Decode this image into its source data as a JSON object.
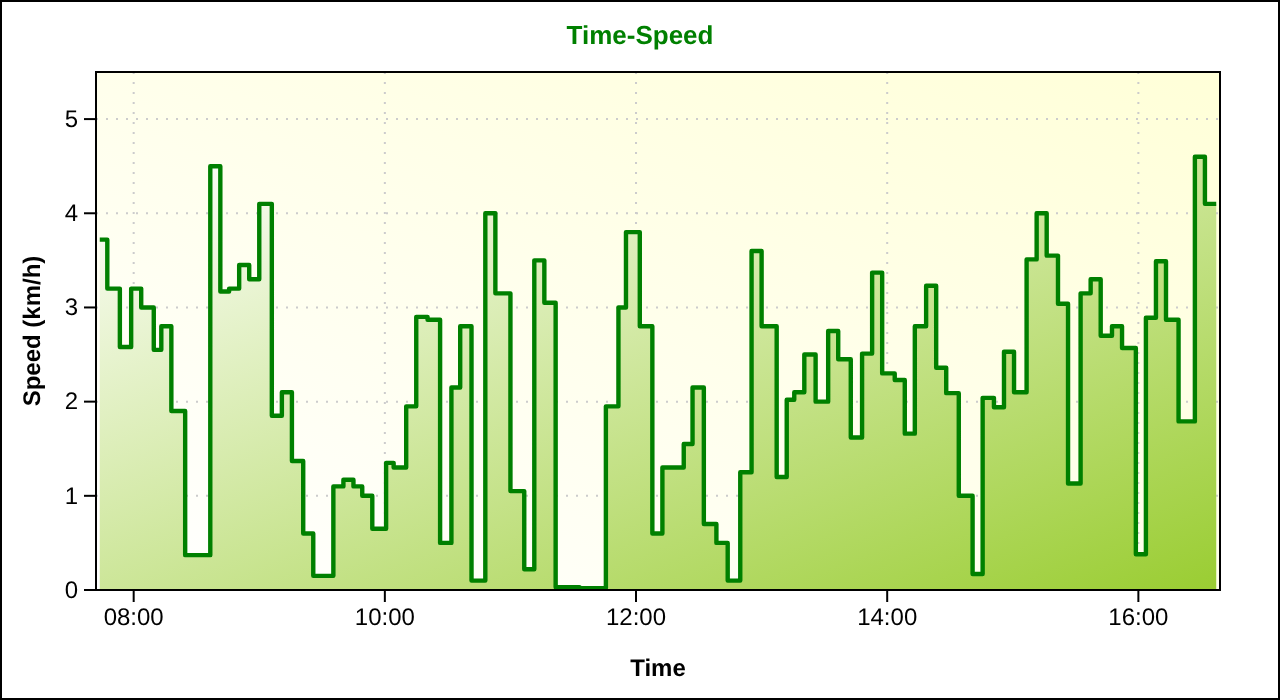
{
  "chart_data": {
    "type": "step",
    "title": "Time-Speed",
    "xlabel": "Time",
    "ylabel": "Speed (km/h)",
    "xlim": [
      7.7,
      16.65
    ],
    "ylim": [
      0,
      5.5
    ],
    "xticks": [
      {
        "value": 8,
        "label": "08:00"
      },
      {
        "value": 10,
        "label": "10:00"
      },
      {
        "value": 12,
        "label": "12:00"
      },
      {
        "value": 14,
        "label": "14:00"
      },
      {
        "value": 16,
        "label": "16:00"
      }
    ],
    "yticks": [
      0,
      1,
      2,
      3,
      4,
      5
    ],
    "grid": true,
    "line_style": "solid",
    "series": [
      {
        "color": "#008000",
        "x": [
          7.73,
          7.79,
          7.89,
          7.98,
          8.06,
          8.16,
          8.22,
          8.3,
          8.41,
          8.61,
          8.69,
          8.76,
          8.84,
          8.92,
          9.0,
          9.1,
          9.18,
          9.26,
          9.35,
          9.43,
          9.59,
          9.67,
          9.75,
          9.82,
          9.9,
          10.01,
          10.07,
          10.17,
          10.25,
          10.34,
          10.44,
          10.53,
          10.6,
          10.69,
          10.8,
          10.88,
          11.0,
          11.11,
          11.19,
          11.27,
          11.36,
          11.55,
          11.76,
          11.86,
          11.92,
          12.03,
          12.13,
          12.21,
          12.38,
          12.45,
          12.54,
          12.64,
          12.73,
          12.83,
          12.92,
          13.0,
          13.12,
          13.2,
          13.26,
          13.34,
          13.43,
          13.53,
          13.61,
          13.71,
          13.8,
          13.88,
          13.96,
          14.06,
          14.14,
          14.22,
          14.31,
          14.39,
          14.47,
          14.57,
          14.68,
          14.76,
          14.85,
          14.93,
          15.01,
          15.11,
          15.19,
          15.27,
          15.36,
          15.44,
          15.54,
          15.62,
          15.7,
          15.79,
          15.87,
          15.98,
          16.06,
          16.14,
          16.22,
          16.32,
          16.45,
          16.53,
          16.62
        ],
        "values": [
          3.72,
          3.2,
          2.58,
          3.2,
          3.0,
          2.55,
          2.8,
          1.9,
          0.37,
          4.5,
          3.17,
          3.2,
          3.45,
          3.3,
          4.1,
          1.85,
          2.1,
          1.37,
          0.6,
          0.15,
          1.1,
          1.17,
          1.1,
          1.0,
          0.65,
          1.35,
          1.3,
          1.95,
          2.9,
          2.87,
          0.5,
          2.15,
          2.8,
          0.1,
          4.0,
          3.15,
          1.05,
          0.22,
          3.5,
          3.05,
          0.03,
          0.02,
          1.95,
          3.0,
          3.8,
          2.8,
          0.6,
          1.3,
          1.55,
          2.15,
          0.7,
          0.5,
          0.1,
          1.25,
          3.6,
          2.8,
          1.2,
          2.02,
          2.1,
          2.5,
          2.0,
          2.75,
          2.45,
          1.62,
          2.51,
          3.37,
          2.3,
          2.23,
          1.66,
          2.8,
          3.23,
          2.36,
          2.09,
          1.0,
          0.17,
          2.04,
          1.94,
          2.53,
          2.1,
          3.51,
          4.0,
          3.55,
          3.04,
          1.13,
          3.15,
          3.3,
          2.7,
          2.8,
          2.57,
          0.38,
          2.89,
          3.49,
          2.87,
          1.79,
          4.6,
          4.1,
          4.1
        ]
      }
    ]
  }
}
